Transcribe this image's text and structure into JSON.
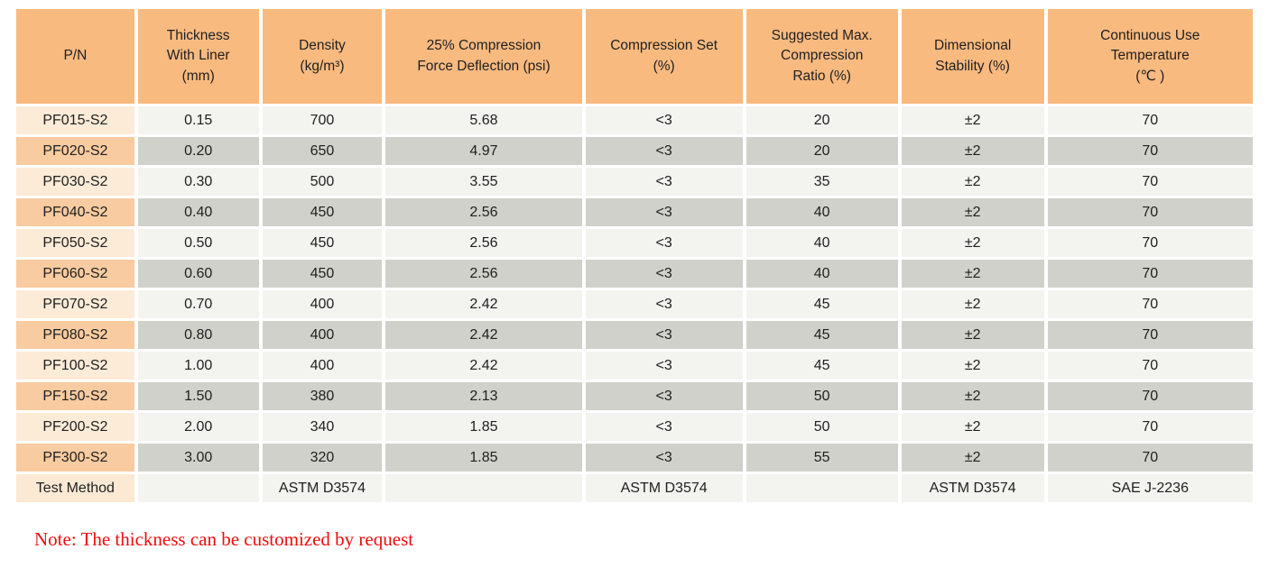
{
  "table": {
    "headers": [
      "P/N",
      "Thickness\nWith Liner\n(mm)",
      "Density\n(kg/m³)",
      "25% Compression\nForce Deflection (psi)",
      "Compression Set\n(%)",
      "Suggested Max.\nCompression\nRatio (%)",
      "Dimensional\nStability (%)",
      "Continuous Use\nTemperature\n(℃ )"
    ],
    "rows": [
      {
        "pn": "PF015-S2",
        "values": [
          "0.15",
          "700",
          "5.68",
          "<3",
          "20",
          "±2",
          "70"
        ]
      },
      {
        "pn": "PF020-S2",
        "values": [
          "0.20",
          "650",
          "4.97",
          "<3",
          "20",
          "±2",
          "70"
        ]
      },
      {
        "pn": "PF030-S2",
        "values": [
          "0.30",
          "500",
          "3.55",
          "<3",
          "35",
          "±2",
          "70"
        ]
      },
      {
        "pn": "PF040-S2",
        "values": [
          "0.40",
          "450",
          "2.56",
          "<3",
          "40",
          "±2",
          "70"
        ]
      },
      {
        "pn": "PF050-S2",
        "values": [
          "0.50",
          "450",
          "2.56",
          "<3",
          "40",
          "±2",
          "70"
        ]
      },
      {
        "pn": "PF060-S2",
        "values": [
          "0.60",
          "450",
          "2.56",
          "<3",
          "40",
          "±2",
          "70"
        ]
      },
      {
        "pn": "PF070-S2",
        "values": [
          "0.70",
          "400",
          "2.42",
          "<3",
          "45",
          "±2",
          "70"
        ]
      },
      {
        "pn": "PF080-S2",
        "values": [
          "0.80",
          "400",
          "2.42",
          "<3",
          "45",
          "±2",
          "70"
        ]
      },
      {
        "pn": "PF100-S2",
        "values": [
          "1.00",
          "400",
          "2.42",
          "<3",
          "45",
          "±2",
          "70"
        ]
      },
      {
        "pn": "PF150-S2",
        "values": [
          "1.50",
          "380",
          "2.13",
          "<3",
          "50",
          "±2",
          "70"
        ]
      },
      {
        "pn": "PF200-S2",
        "values": [
          "2.00",
          "340",
          "1.85",
          "<3",
          "50",
          "±2",
          "70"
        ]
      },
      {
        "pn": "PF300-S2",
        "values": [
          "3.00",
          "320",
          "1.85",
          "<3",
          "55",
          "±2",
          "70"
        ]
      }
    ],
    "test_method_row": {
      "label": "Test Method",
      "values": [
        "",
        "ASTM D3574",
        "",
        "ASTM D3574",
        "",
        "ASTM D3574",
        "SAE J-2236"
      ]
    }
  },
  "note": {
    "text": "Note: The thickness can be customized by request"
  },
  "colors": {
    "header_bg": "#f9ba80",
    "pn_cell_odd": "#fcebd7",
    "pn_cell_even": "#f8cba0",
    "data_cell_odd": "#f3f3ef",
    "data_cell_even": "#d0d1ca",
    "test_method_pn_bg": "#fbe9d4",
    "note_text": "#f00c0c"
  }
}
